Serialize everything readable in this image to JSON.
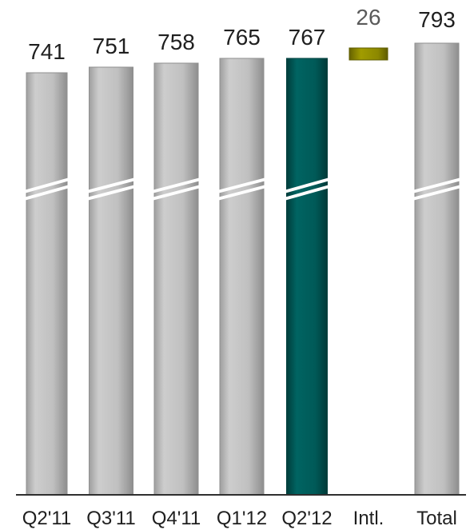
{
  "chart_data": {
    "type": "bar",
    "categories": [
      "Q2'11",
      "Q3'11",
      "Q4'11",
      "Q1'12",
      "Q2'12",
      "Intl.",
      "Total"
    ],
    "values": [
      741,
      751,
      758,
      765,
      767,
      26,
      793
    ],
    "data_labels": [
      "741",
      "751",
      "758",
      "765",
      "767",
      "26",
      "793"
    ],
    "axis_break": true,
    "floating_segment": {
      "category": "Intl.",
      "start": 767,
      "end": 793
    },
    "grid": false,
    "legend": "none"
  },
  "colors": {
    "regular_bar": "#b9b9b9",
    "regular_bar_edge": "#8f8f8f",
    "highlight_bar": "#005856",
    "highlight_bar_edge": "#003f3d",
    "intl_bar": "#8f8b00",
    "intl_bar_edge": "#5f5c00",
    "axis": "#2f2f2f",
    "break_mark": "#ffffff"
  }
}
